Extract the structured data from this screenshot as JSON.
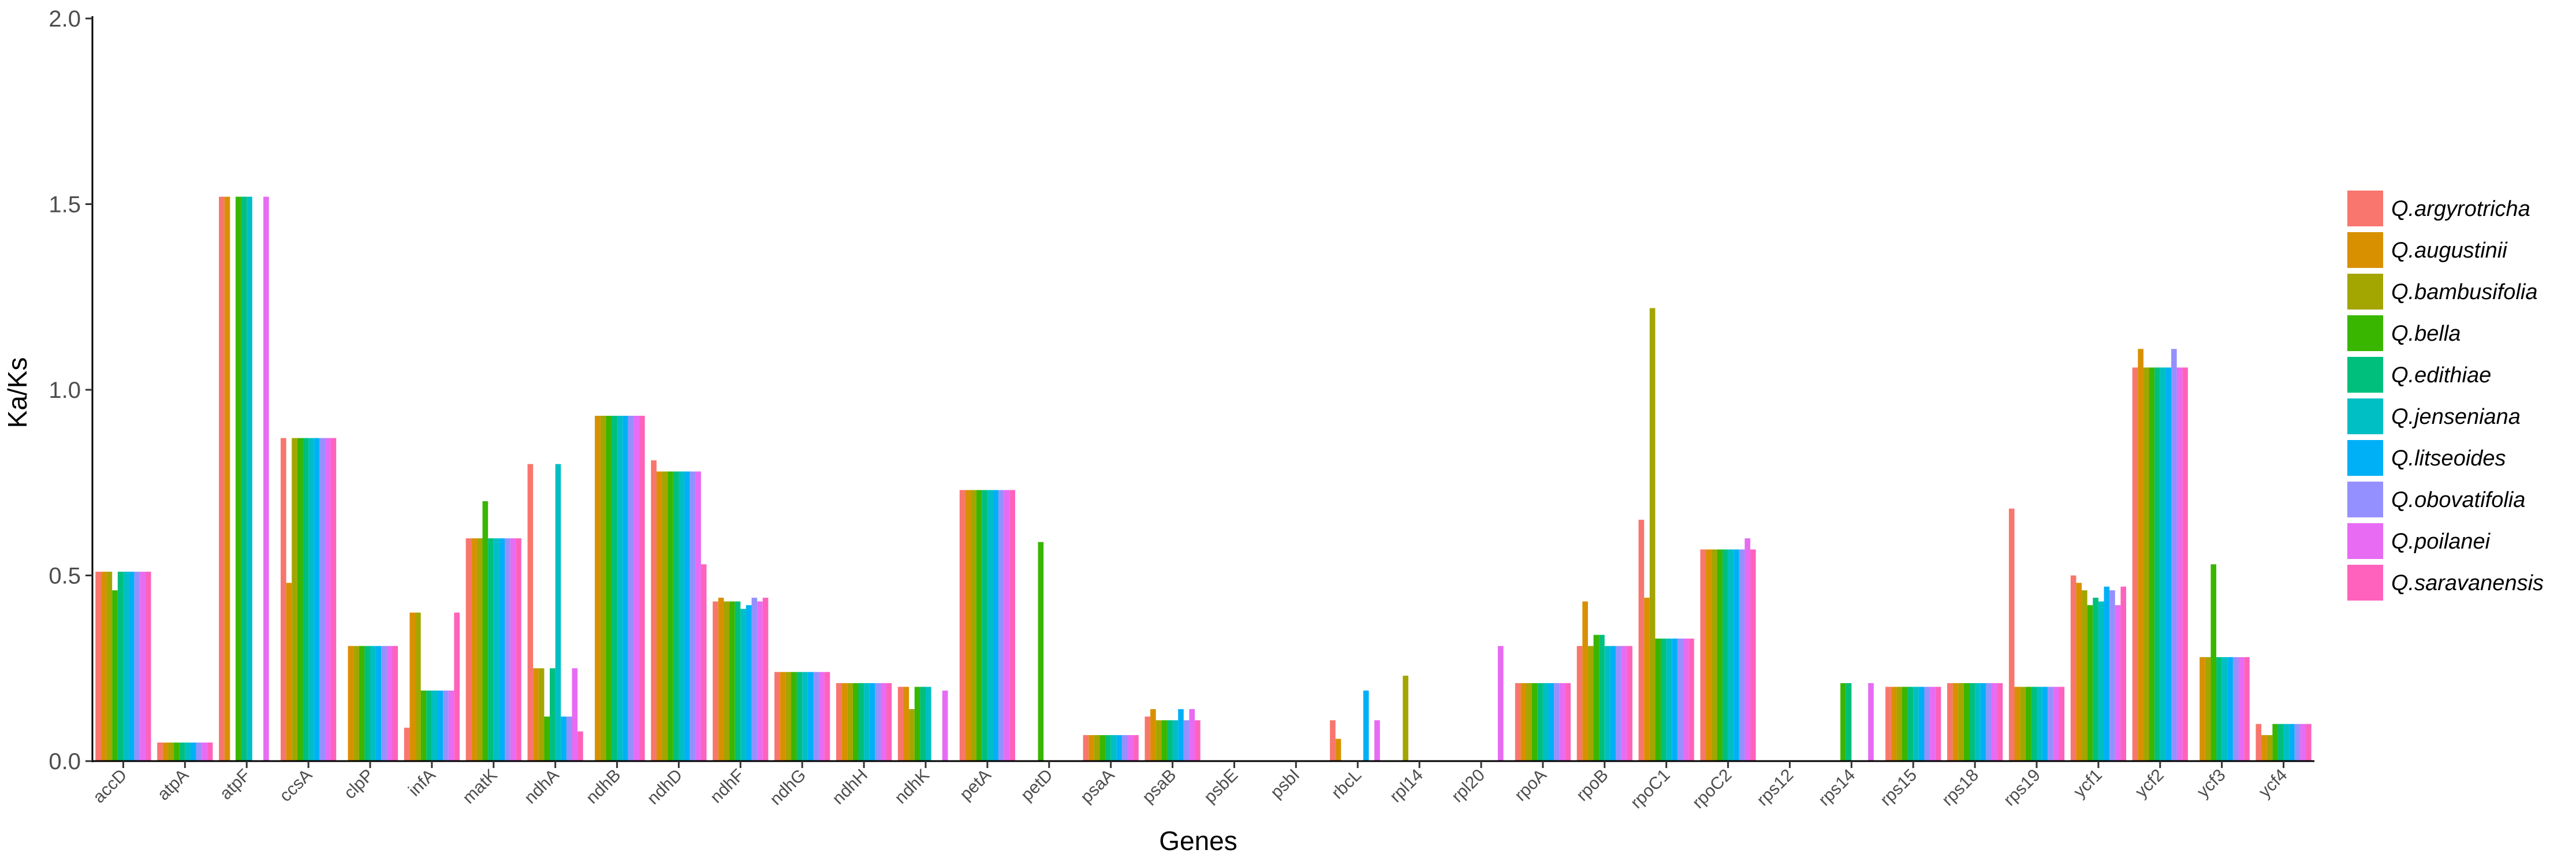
{
  "chart_data": {
    "type": "bar",
    "xlabel": "Genes",
    "ylabel": "Ka/Ks",
    "ylim": [
      0,
      2.0
    ],
    "yticks": [
      "0.0",
      "0.5",
      "1.0",
      "1.5",
      "2.0"
    ],
    "legend_position": "right",
    "grid": false,
    "categories": [
      "accD",
      "atpA",
      "atpF",
      "ccsA",
      "clpP",
      "infA",
      "matK",
      "ndhA",
      "ndhB",
      "ndhD",
      "ndhF",
      "ndhG",
      "ndhH",
      "ndhK",
      "petA",
      "petD",
      "psaA",
      "psaB",
      "psbE",
      "psbI",
      "rbcL",
      "rpl14",
      "rpl20",
      "rpoA",
      "rpoB",
      "rpoC1",
      "rpoC2",
      "rps12",
      "rps14",
      "rps15",
      "rps18",
      "rps19",
      "ycf1",
      "ycf2",
      "ycf3",
      "ycf4"
    ],
    "series": [
      {
        "name": "Q.argyrotricha",
        "color": "#F8766D",
        "values": [
          0.51,
          0.05,
          1.52,
          0.87,
          0,
          0.09,
          0.6,
          0.8,
          0,
          0.81,
          0.43,
          0.24,
          0.21,
          0.2,
          0.73,
          0,
          0.07,
          0.12,
          0,
          0,
          0.11,
          0,
          0,
          0.21,
          0.31,
          0.65,
          0.57,
          0,
          0,
          0.2,
          0.21,
          0.68,
          0.5,
          1.06,
          0,
          0.1
        ]
      },
      {
        "name": "Q.augustinii",
        "color": "#D89000",
        "values": [
          0.51,
          0.05,
          1.52,
          0.48,
          0.31,
          0.4,
          0.6,
          0.25,
          0.93,
          0.78,
          0.44,
          0.24,
          0.21,
          0.2,
          0.73,
          0,
          0.07,
          0.14,
          0,
          0,
          0.06,
          0,
          0,
          0.21,
          0.43,
          0.44,
          0.57,
          0,
          0,
          0.2,
          0.21,
          0.2,
          0.48,
          1.11,
          0.28,
          0.07
        ]
      },
      {
        "name": "Q.bambusifolia",
        "color": "#A3A500",
        "values": [
          0.51,
          0.05,
          0,
          0.87,
          0.31,
          0.4,
          0.6,
          0.25,
          0.93,
          0.78,
          0.43,
          0.24,
          0.21,
          0.14,
          0.73,
          0,
          0.07,
          0.11,
          0,
          0,
          0,
          0.23,
          0,
          0.21,
          0.31,
          1.22,
          0.57,
          0,
          0,
          0.2,
          0.21,
          0.2,
          0.46,
          1.06,
          0.28,
          0.07
        ]
      },
      {
        "name": "Q.bella",
        "color": "#39B600",
        "values": [
          0.46,
          0.05,
          1.52,
          0.87,
          0.31,
          0.19,
          0.7,
          0.12,
          0.93,
          0.78,
          0.43,
          0.24,
          0.21,
          0.2,
          0.73,
          0.59,
          0.07,
          0.11,
          0,
          0,
          0,
          0,
          0,
          0.21,
          0.34,
          0.33,
          0.57,
          0,
          0.21,
          0.2,
          0.21,
          0.2,
          0.42,
          1.06,
          0.53,
          0.1
        ]
      },
      {
        "name": "Q.edithiae",
        "color": "#00BF7D",
        "values": [
          0.51,
          0.05,
          1.52,
          0.87,
          0.31,
          0.19,
          0.6,
          0.25,
          0.93,
          0.78,
          0.43,
          0.24,
          0.21,
          0.2,
          0.73,
          0,
          0.07,
          0.11,
          0,
          0,
          0,
          0,
          0,
          0.21,
          0.34,
          0.33,
          0.57,
          0,
          0.21,
          0.2,
          0.21,
          0.2,
          0.44,
          1.06,
          0.28,
          0.1
        ]
      },
      {
        "name": "Q.jenseniana",
        "color": "#00BFC4",
        "values": [
          0.51,
          0.05,
          1.52,
          0.87,
          0.31,
          0.19,
          0.6,
          0.8,
          0.93,
          0.78,
          0.41,
          0.24,
          0.21,
          0.2,
          0.73,
          0,
          0.07,
          0.11,
          0,
          0,
          0,
          0,
          0,
          0.21,
          0.31,
          0.33,
          0.57,
          0,
          0,
          0.2,
          0.21,
          0.2,
          0.43,
          1.06,
          0.28,
          0.1
        ]
      },
      {
        "name": "Q.litseoides",
        "color": "#00B0F6",
        "values": [
          0.51,
          0.05,
          0,
          0.87,
          0.31,
          0.19,
          0.6,
          0.12,
          0.93,
          0.78,
          0.42,
          0.24,
          0.21,
          0,
          0.73,
          0,
          0.07,
          0.14,
          0,
          0,
          0.19,
          0,
          0,
          0.21,
          0.31,
          0.33,
          0.57,
          0,
          0,
          0.2,
          0.21,
          0.2,
          0.47,
          1.06,
          0.28,
          0.1
        ]
      },
      {
        "name": "Q.obovatifolia",
        "color": "#9590FF",
        "values": [
          0.51,
          0.05,
          0,
          0.87,
          0.31,
          0.19,
          0.6,
          0.12,
          0.93,
          0.78,
          0.44,
          0.24,
          0.21,
          0,
          0.73,
          0,
          0.07,
          0.11,
          0,
          0,
          0,
          0,
          0,
          0.21,
          0.31,
          0.33,
          0.57,
          0,
          0,
          0.2,
          0.21,
          0.2,
          0.46,
          1.11,
          0.28,
          0.1
        ]
      },
      {
        "name": "Q.poilanei",
        "color": "#E76BF3",
        "values": [
          0.51,
          0.05,
          1.52,
          0.87,
          0.31,
          0.19,
          0.6,
          0.25,
          0.93,
          0.78,
          0.43,
          0.24,
          0.21,
          0.19,
          0.73,
          0,
          0.07,
          0.14,
          0,
          0,
          0.11,
          0,
          0.31,
          0.21,
          0.31,
          0.33,
          0.6,
          0,
          0.21,
          0.2,
          0.21,
          0.2,
          0.42,
          1.06,
          0.28,
          0.1
        ]
      },
      {
        "name": "Q.saravanensis",
        "color": "#FF62BC",
        "values": [
          0.51,
          0.05,
          0,
          0.87,
          0.31,
          0.4,
          0.6,
          0.08,
          0.93,
          0.53,
          0.44,
          0.24,
          0.21,
          0,
          0.73,
          0,
          0.07,
          0.11,
          0,
          0,
          0,
          0,
          0,
          0.21,
          0.31,
          0.33,
          0.57,
          0,
          0,
          0.2,
          0.21,
          0.2,
          0.47,
          1.06,
          0.28,
          0.1
        ]
      }
    ]
  }
}
